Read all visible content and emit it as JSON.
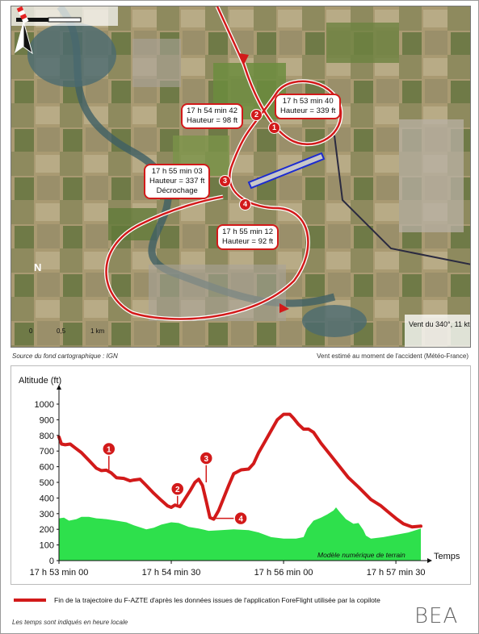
{
  "map": {
    "callouts": [
      {
        "id": "1",
        "time": "17 h 53 min 40",
        "height": "Hauteur = 339 ft",
        "extra": ""
      },
      {
        "id": "2",
        "time": "17 h 54 min 42",
        "height": "Hauteur = 98 ft",
        "extra": ""
      },
      {
        "id": "3",
        "time": "17 h 55 min 03",
        "height": "Hauteur = 337 ft",
        "extra": "Décrochage"
      },
      {
        "id": "4",
        "time": "17 h 55 min 12",
        "height": "Hauteur = 92 ft",
        "extra": ""
      }
    ],
    "north_label": "N",
    "scale": {
      "ticks": [
        "0",
        "0,5",
        "1 km"
      ]
    },
    "wind_label": "Vent du 340°, 11 kt",
    "source_caption": "Source du fond cartographique : IGN",
    "wind_caption": "Vent estimé au moment de l'accident (Météo-France)",
    "colors": {
      "track": "#d21a1a",
      "runway": "#1b2bd1",
      "terrain": "#2ee04c"
    }
  },
  "chart_data": {
    "type": "area",
    "ylabel": "Altitude (ft)",
    "xlabel": "Temps",
    "ylim": [
      0,
      1000
    ],
    "yticks": [
      0,
      100,
      200,
      300,
      400,
      500,
      600,
      700,
      800,
      900,
      1000
    ],
    "xlim_seconds_after_17h53": [
      0,
      290
    ],
    "xticks": [
      {
        "t": 0,
        "label": "17 h 53 min 00"
      },
      {
        "t": 90,
        "label": "17 h 54 min 30"
      },
      {
        "t": 180,
        "label": "17 h 56 min 00"
      },
      {
        "t": 270,
        "label": "17 h 57 min 30"
      }
    ],
    "series": [
      {
        "name": "Fin de la trajectoire du F-AZTE d'après les données issues de l'application ForeFlight utilisée par la copilote",
        "color": "#d21a1a",
        "points": [
          [
            0,
            790
          ],
          [
            2,
            745
          ],
          [
            5,
            740
          ],
          [
            9,
            745
          ],
          [
            13,
            720
          ],
          [
            18,
            690
          ],
          [
            24,
            640
          ],
          [
            30,
            590
          ],
          [
            34,
            575
          ],
          [
            38,
            578
          ],
          [
            42,
            560
          ],
          [
            46,
            530
          ],
          [
            52,
            525
          ],
          [
            57,
            510
          ],
          [
            60,
            515
          ],
          [
            65,
            520
          ],
          [
            70,
            480
          ],
          [
            76,
            430
          ],
          [
            82,
            385
          ],
          [
            87,
            350
          ],
          [
            90,
            340
          ],
          [
            93,
            355
          ],
          [
            97,
            345
          ],
          [
            101,
            395
          ],
          [
            105,
            445
          ],
          [
            109,
            500
          ],
          [
            112,
            520
          ],
          [
            115,
            480
          ],
          [
            118,
            380
          ],
          [
            121,
            275
          ],
          [
            124,
            265
          ],
          [
            128,
            320
          ],
          [
            132,
            400
          ],
          [
            136,
            480
          ],
          [
            140,
            555
          ],
          [
            146,
            580
          ],
          [
            152,
            585
          ],
          [
            156,
            620
          ],
          [
            160,
            690
          ],
          [
            165,
            760
          ],
          [
            170,
            830
          ],
          [
            175,
            900
          ],
          [
            180,
            935
          ],
          [
            185,
            935
          ],
          [
            188,
            910
          ],
          [
            192,
            870
          ],
          [
            196,
            840
          ],
          [
            200,
            840
          ],
          [
            204,
            820
          ],
          [
            210,
            750
          ],
          [
            218,
            670
          ],
          [
            225,
            600
          ],
          [
            232,
            530
          ],
          [
            240,
            470
          ],
          [
            250,
            390
          ],
          [
            258,
            350
          ],
          [
            264,
            310
          ],
          [
            270,
            270
          ],
          [
            276,
            235
          ],
          [
            283,
            215
          ],
          [
            290,
            220
          ]
        ]
      }
    ],
    "terrain": {
      "name": "Modèle numérique de terrain",
      "points": [
        [
          0,
          270
        ],
        [
          4,
          275
        ],
        [
          8,
          255
        ],
        [
          14,
          265
        ],
        [
          18,
          280
        ],
        [
          24,
          280
        ],
        [
          30,
          270
        ],
        [
          38,
          265
        ],
        [
          46,
          255
        ],
        [
          54,
          245
        ],
        [
          60,
          225
        ],
        [
          66,
          210
        ],
        [
          70,
          200
        ],
        [
          76,
          210
        ],
        [
          82,
          230
        ],
        [
          90,
          245
        ],
        [
          96,
          240
        ],
        [
          104,
          215
        ],
        [
          112,
          205
        ],
        [
          120,
          190
        ],
        [
          130,
          195
        ],
        [
          140,
          200
        ],
        [
          152,
          195
        ],
        [
          160,
          180
        ],
        [
          170,
          150
        ],
        [
          180,
          140
        ],
        [
          190,
          140
        ],
        [
          196,
          150
        ],
        [
          199,
          205
        ],
        [
          204,
          255
        ],
        [
          210,
          275
        ],
        [
          215,
          295
        ],
        [
          220,
          320
        ],
        [
          222,
          340
        ],
        [
          225,
          310
        ],
        [
          230,
          265
        ],
        [
          236,
          235
        ],
        [
          240,
          240
        ],
        [
          244,
          195
        ],
        [
          246,
          160
        ],
        [
          250,
          140
        ],
        [
          260,
          150
        ],
        [
          270,
          165
        ],
        [
          280,
          180
        ],
        [
          290,
          205
        ]
      ]
    },
    "annotations": [
      {
        "id": "1",
        "t": 40,
        "alt": 580
      },
      {
        "id": "2",
        "t": 95,
        "alt": 345
      },
      {
        "id": "3",
        "t": 118,
        "alt": 500
      },
      {
        "id": "4",
        "t": 125,
        "alt": 270
      }
    ]
  },
  "footer": {
    "legend_text": "Fin de la trajectoire du F-AZTE d'après les données issues de l'application ForeFlight utilisée par la copilote",
    "note": "Les temps sont indiqués en heure locale",
    "logo": "BEA"
  }
}
